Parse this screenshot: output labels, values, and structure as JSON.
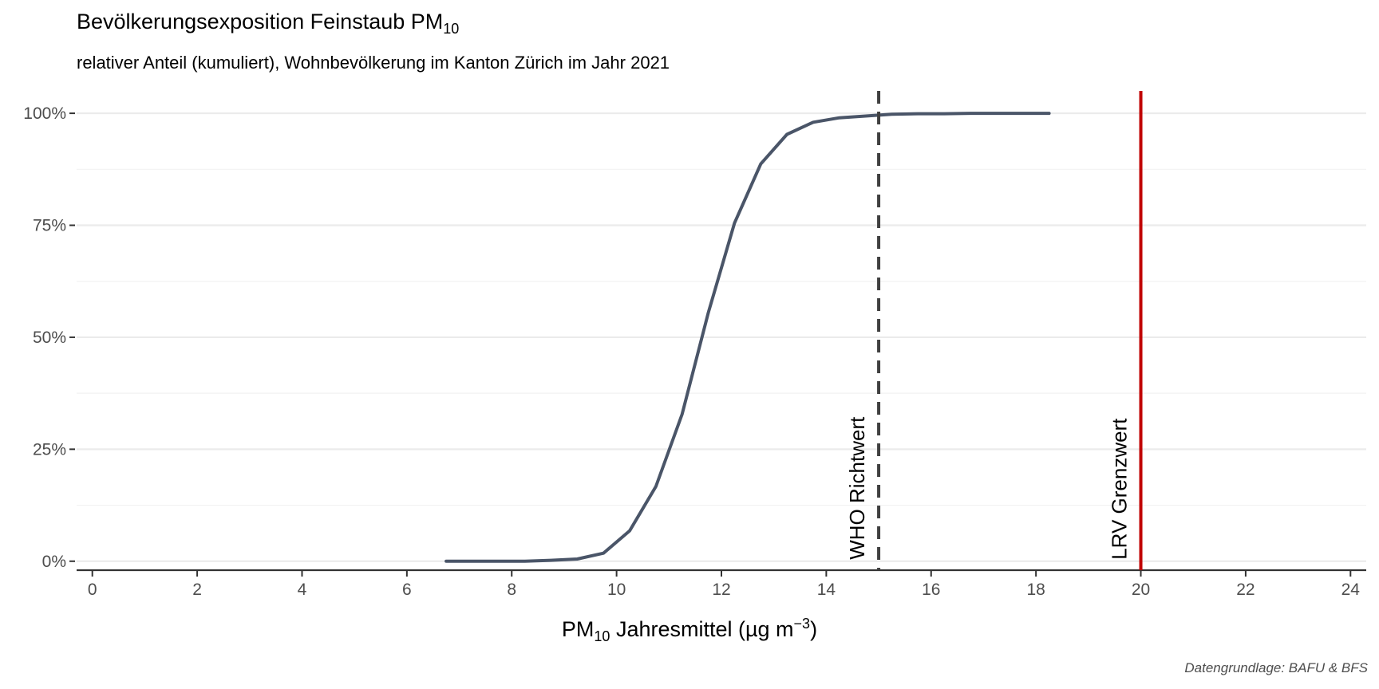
{
  "title": {
    "main": "Bevölkerungsexposition Feinstaub PM",
    "sub": "10"
  },
  "subtitle": "relativer Anteil (kumuliert), Wohnbevölkerung im Kanton Zürich im Jahr 2021",
  "xlabel": {
    "pre": "PM",
    "sub": "10",
    "mid": " Jahresmittel (µg m",
    "sup": "−3",
    "post": ")"
  },
  "caption": "Datengrundlage: BAFU & BFS",
  "colors": {
    "line": "#4a5568",
    "who": "#404040",
    "lrv": "#c00000",
    "grid": "#ebebeb",
    "axis": "#333333",
    "tick_text": "#4d4d4d"
  },
  "chart_data": {
    "type": "line",
    "title": "Bevölkerungsexposition Feinstaub PM10",
    "subtitle": "relativer Anteil (kumuliert), Wohnbevölkerung im Kanton Zürich im Jahr 2021",
    "xlabel": "PM10 Jahresmittel (µg m−3)",
    "ylabel": "",
    "xlim": [
      -0.3,
      24.3
    ],
    "ylim": [
      -0.02,
      1.05
    ],
    "x_ticks": [
      0,
      2,
      4,
      6,
      8,
      10,
      12,
      14,
      16,
      18,
      20,
      22,
      24
    ],
    "x_tick_labels": [
      "0",
      "2",
      "4",
      "6",
      "8",
      "10",
      "12",
      "14",
      "16",
      "18",
      "20",
      "22",
      "24"
    ],
    "y_ticks": [
      0,
      0.25,
      0.5,
      0.75,
      1.0
    ],
    "y_tick_labels": [
      "0%",
      "25%",
      "50%",
      "75%",
      "100%"
    ],
    "grid": true,
    "series": [
      {
        "x": [
          6.75,
          7.25,
          7.75,
          8.25,
          8.75,
          9.25,
          9.75,
          10.25,
          10.75,
          11.25,
          11.75,
          12.25,
          12.75,
          13.25,
          13.75,
          14.25,
          14.75,
          15.25,
          15.75,
          16.25,
          16.75,
          17.25,
          17.75,
          18.25
        ],
        "y": [
          0.0,
          0.0,
          0.0,
          0.0,
          0.002,
          0.005,
          0.018,
          0.068,
          0.167,
          0.328,
          0.555,
          0.755,
          0.887,
          0.953,
          0.98,
          0.99,
          0.994,
          0.998,
          0.999,
          0.999,
          1.0,
          1.0,
          1.0,
          1.0
        ]
      }
    ],
    "annotations": [
      {
        "label": "WHO Richtwert",
        "x": 15,
        "style": "dashed"
      },
      {
        "label": "LRV Grenzwert",
        "x": 20,
        "style": "solid"
      }
    ]
  }
}
